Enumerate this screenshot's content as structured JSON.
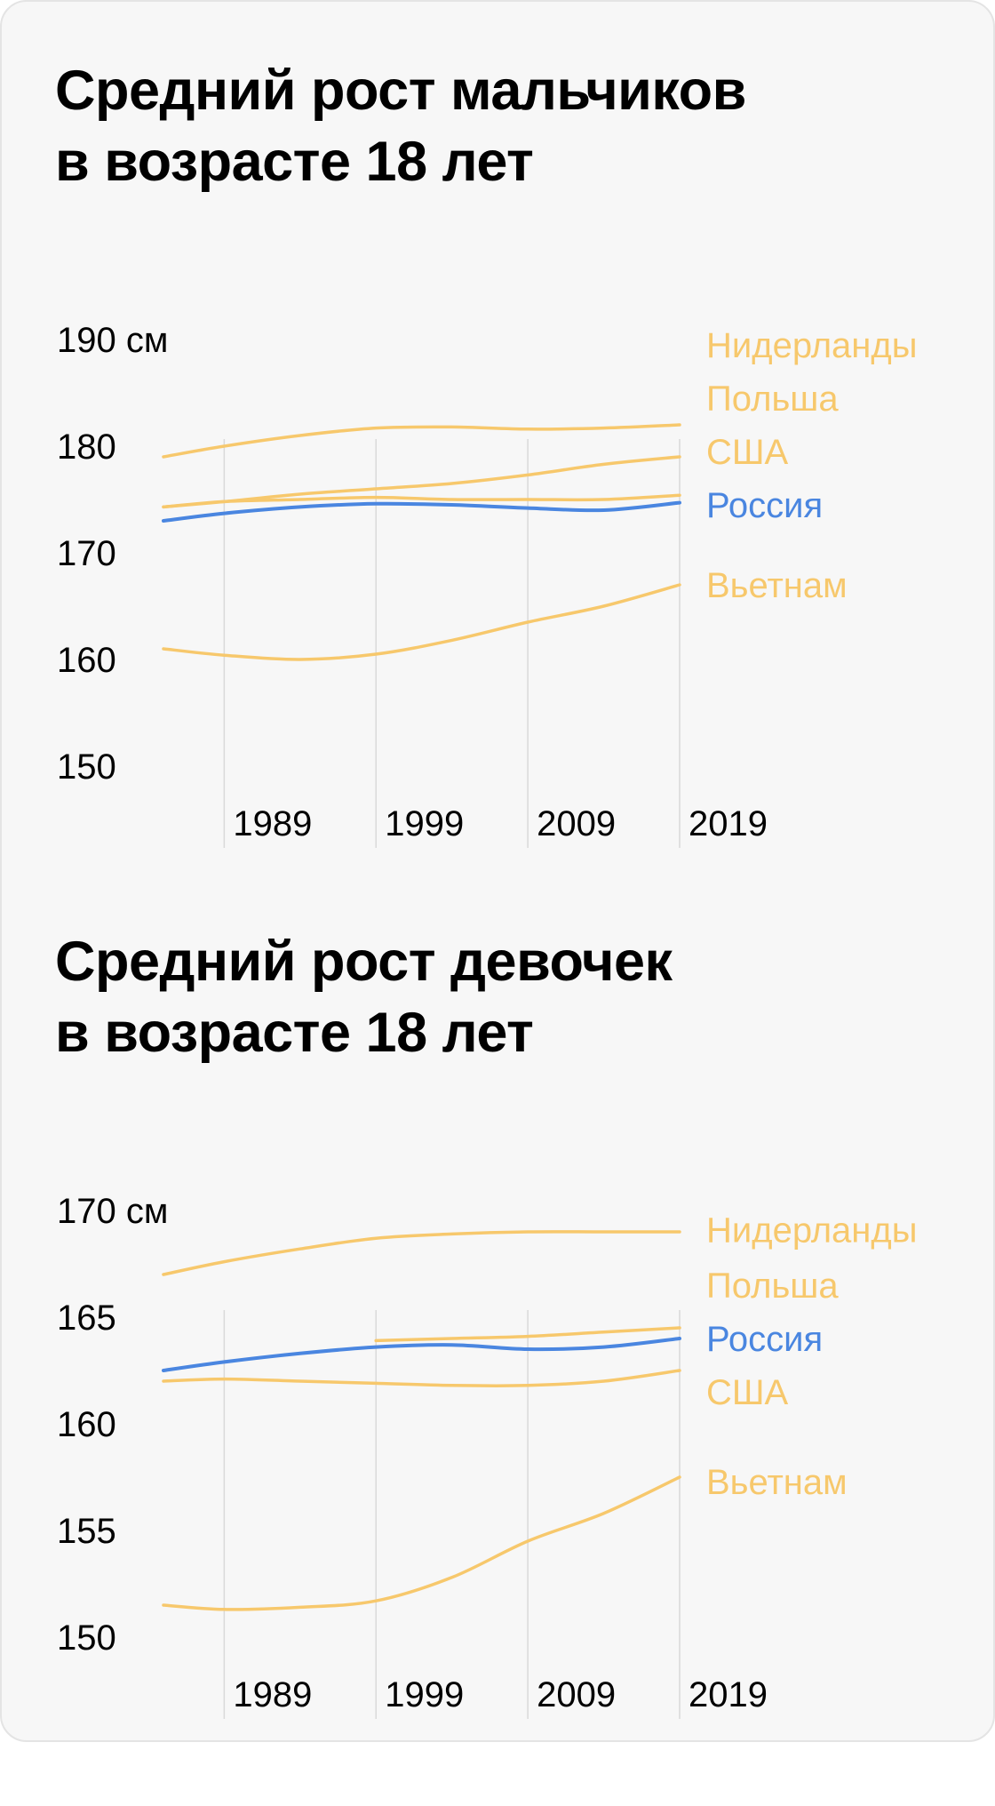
{
  "colors": {
    "highlight": "#4a86e0",
    "other": "#f7c86c",
    "grid": "#d9d9d9"
  },
  "chart_data": [
    {
      "type": "line",
      "title_lines": [
        "Средний рост мальчиков",
        "в возрасте 18 лет"
      ],
      "ylim": [
        150,
        190
      ],
      "yticks": [
        {
          "value": 190,
          "label": "190 см"
        },
        {
          "value": 180,
          "label": "180"
        },
        {
          "value": 170,
          "label": "170"
        },
        {
          "value": 160,
          "label": "160"
        },
        {
          "value": 150,
          "label": "150"
        }
      ],
      "xlim": [
        1985,
        2019
      ],
      "xticks": [
        {
          "value": 1989,
          "label": "1989"
        },
        {
          "value": 1999,
          "label": "1999"
        },
        {
          "value": 2009,
          "label": "2009"
        },
        {
          "value": 2019,
          "label": "2019"
        }
      ],
      "grid": true,
      "series": [
        {
          "name": "Нидерланды",
          "label_y": 189.5,
          "highlight": false,
          "x": [
            1985,
            1989,
            1994,
            1999,
            2004,
            2009,
            2014,
            2019
          ],
          "values": [
            179.0,
            180.0,
            181.0,
            181.7,
            181.8,
            181.6,
            181.7,
            182.0
          ]
        },
        {
          "name": "Польша",
          "label_y": 184.5,
          "highlight": false,
          "x": [
            1985,
            1989,
            1994,
            1999,
            2004,
            2009,
            2014,
            2019
          ],
          "values": [
            174.3,
            174.8,
            175.5,
            176.0,
            176.5,
            177.3,
            178.3,
            179.0
          ]
        },
        {
          "name": "США",
          "label_y": 179.5,
          "highlight": false,
          "x": [
            1985,
            1989,
            1994,
            1999,
            2004,
            2009,
            2014,
            2019
          ],
          "values": [
            174.3,
            174.8,
            175.0,
            175.2,
            175.0,
            175.0,
            175.0,
            175.4
          ]
        },
        {
          "name": "Россия",
          "label_y": 174.5,
          "highlight": true,
          "x": [
            1985,
            1989,
            1994,
            1999,
            2004,
            2009,
            2014,
            2019
          ],
          "values": [
            173.0,
            173.7,
            174.3,
            174.6,
            174.5,
            174.2,
            174.0,
            174.7
          ]
        },
        {
          "name": "Вьетнам",
          "label_y": 167.0,
          "highlight": false,
          "x": [
            1985,
            1989,
            1994,
            1999,
            2004,
            2009,
            2014,
            2019
          ],
          "values": [
            161.0,
            160.4,
            160.0,
            160.5,
            161.8,
            163.5,
            165.0,
            167.0
          ]
        }
      ]
    },
    {
      "type": "line",
      "title_lines": [
        "Средний рост девочек",
        "в возрасте 18 лет"
      ],
      "ylim": [
        150,
        170
      ],
      "yticks": [
        {
          "value": 170,
          "label": "170 см"
        },
        {
          "value": 165,
          "label": "165"
        },
        {
          "value": 160,
          "label": "160"
        },
        {
          "value": 155,
          "label": "155"
        },
        {
          "value": 150,
          "label": "150"
        }
      ],
      "xlim": [
        1985,
        2019
      ],
      "xticks": [
        {
          "value": 1989,
          "label": "1989"
        },
        {
          "value": 1999,
          "label": "1999"
        },
        {
          "value": 2009,
          "label": "2009"
        },
        {
          "value": 2019,
          "label": "2019"
        }
      ],
      "grid": true,
      "series": [
        {
          "name": "Нидерланды",
          "label_y": 169.1,
          "highlight": false,
          "x": [
            1985,
            1989,
            1994,
            1999,
            2004,
            2009,
            2014,
            2019
          ],
          "values": [
            167.0,
            167.6,
            168.2,
            168.7,
            168.9,
            169.0,
            169.0,
            169.0
          ]
        },
        {
          "name": "Польша",
          "label_y": 166.5,
          "highlight": false,
          "x": [
            1999,
            2004,
            2009,
            2014,
            2019
          ],
          "values": [
            163.9,
            164.0,
            164.1,
            164.3,
            164.5
          ]
        },
        {
          "name": "Россия",
          "label_y": 164.0,
          "highlight": true,
          "x": [
            1985,
            1989,
            1994,
            1999,
            2004,
            2009,
            2014,
            2019
          ],
          "values": [
            162.5,
            162.9,
            163.3,
            163.6,
            163.7,
            163.5,
            163.6,
            164.0
          ]
        },
        {
          "name": "США",
          "label_y": 161.5,
          "highlight": false,
          "x": [
            1985,
            1989,
            1994,
            1999,
            2004,
            2009,
            2014,
            2019
          ],
          "values": [
            162.0,
            162.1,
            162.0,
            161.9,
            161.8,
            161.8,
            162.0,
            162.5
          ]
        },
        {
          "name": "Вьетнам",
          "label_y": 157.3,
          "highlight": false,
          "x": [
            1985,
            1989,
            1994,
            1999,
            2004,
            2009,
            2014,
            2019
          ],
          "values": [
            151.5,
            151.3,
            151.4,
            151.7,
            152.8,
            154.5,
            155.8,
            157.5
          ]
        }
      ]
    }
  ]
}
